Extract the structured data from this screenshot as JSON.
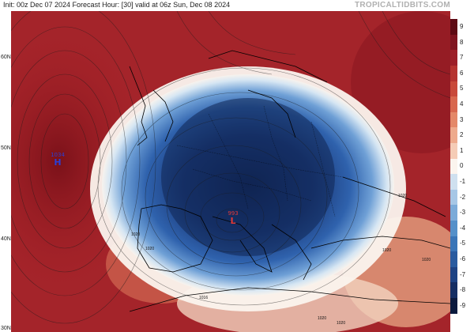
{
  "header": {
    "run_text": "Init: 00z Dec 07 2024   Forecast Hour: [30]   valid at 06z Sun, Dec 08 2024",
    "brand": "TROPICALTIDBITS.COM"
  },
  "map": {
    "lat_labels": [
      "60N",
      "50N",
      "40N",
      "30N"
    ],
    "high": {
      "value": "1034",
      "letter": "H",
      "color": "#2a3fd6"
    },
    "low": {
      "value": "993",
      "letter": "L",
      "color": "#d62a2a"
    },
    "isobar_labels": [
      "1020",
      "1020",
      "1020",
      "1020",
      "1020",
      "1016",
      "1020",
      "1020"
    ]
  },
  "colorbar": {
    "labels": [
      "9",
      "8",
      "7",
      "6",
      "5",
      "4",
      "3",
      "2",
      "1",
      "0",
      "-1",
      "-2",
      "-3",
      "-4",
      "-5",
      "-6",
      "-7",
      "-8",
      "-9"
    ],
    "colors": [
      "#5e0a14",
      "#7f1420",
      "#9c1f28",
      "#b53330",
      "#c8493a",
      "#d8674e",
      "#e48868",
      "#eeaa8c",
      "#f5ccb6",
      "#fbf4ee",
      "#cfe0ef",
      "#a7c7e6",
      "#7cabd9",
      "#5590c9",
      "#3a75b7",
      "#2a5b9f",
      "#1e4384",
      "#152e63",
      "#0b1a3e"
    ]
  }
}
